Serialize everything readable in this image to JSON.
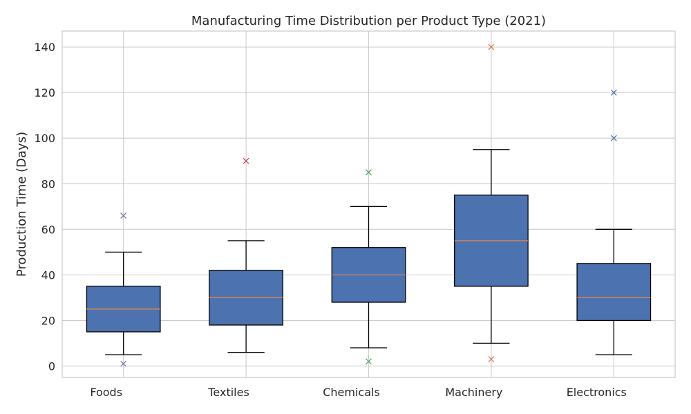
{
  "chart_data": {
    "type": "box",
    "title": "Manufacturing Time Distribution per Product Type (2021)",
    "xlabel": "",
    "ylabel": "Production Time (Days)",
    "ylim": [
      -5,
      147
    ],
    "yticks": [
      0,
      20,
      40,
      60,
      80,
      100,
      120,
      140
    ],
    "ytick_labels": [
      "0",
      "20",
      "40",
      "60",
      "80",
      "100",
      "120",
      "140"
    ],
    "grid": true,
    "box_color": "#4c72b0",
    "median_color": "#dd8452",
    "categories": [
      "Foods",
      "Textiles",
      "Chemicals",
      "Machinery",
      "Electronics"
    ],
    "boxes": [
      {
        "name": "Foods",
        "min": 5,
        "q1": 15,
        "median": 25,
        "q3": 35,
        "max": 50,
        "outliers": [
          1,
          66
        ],
        "outlier_color": "#8172b3"
      },
      {
        "name": "Textiles",
        "min": 6,
        "q1": 18,
        "median": 30,
        "q3": 42,
        "max": 55,
        "outliers": [
          90
        ],
        "outlier_color": "#c44e52"
      },
      {
        "name": "Chemicals",
        "min": 8,
        "q1": 28,
        "median": 40,
        "q3": 52,
        "max": 70,
        "outliers": [
          2,
          85
        ],
        "outlier_color": "#55a868"
      },
      {
        "name": "Machinery",
        "min": 10,
        "q1": 35,
        "median": 55,
        "q3": 75,
        "max": 95,
        "outliers": [
          3,
          140
        ],
        "outlier_color": "#dd8452"
      },
      {
        "name": "Electronics",
        "min": 5,
        "q1": 20,
        "median": 30,
        "q3": 45,
        "max": 60,
        "outliers": [
          100,
          120
        ],
        "outlier_color": "#4c72b0"
      }
    ]
  }
}
